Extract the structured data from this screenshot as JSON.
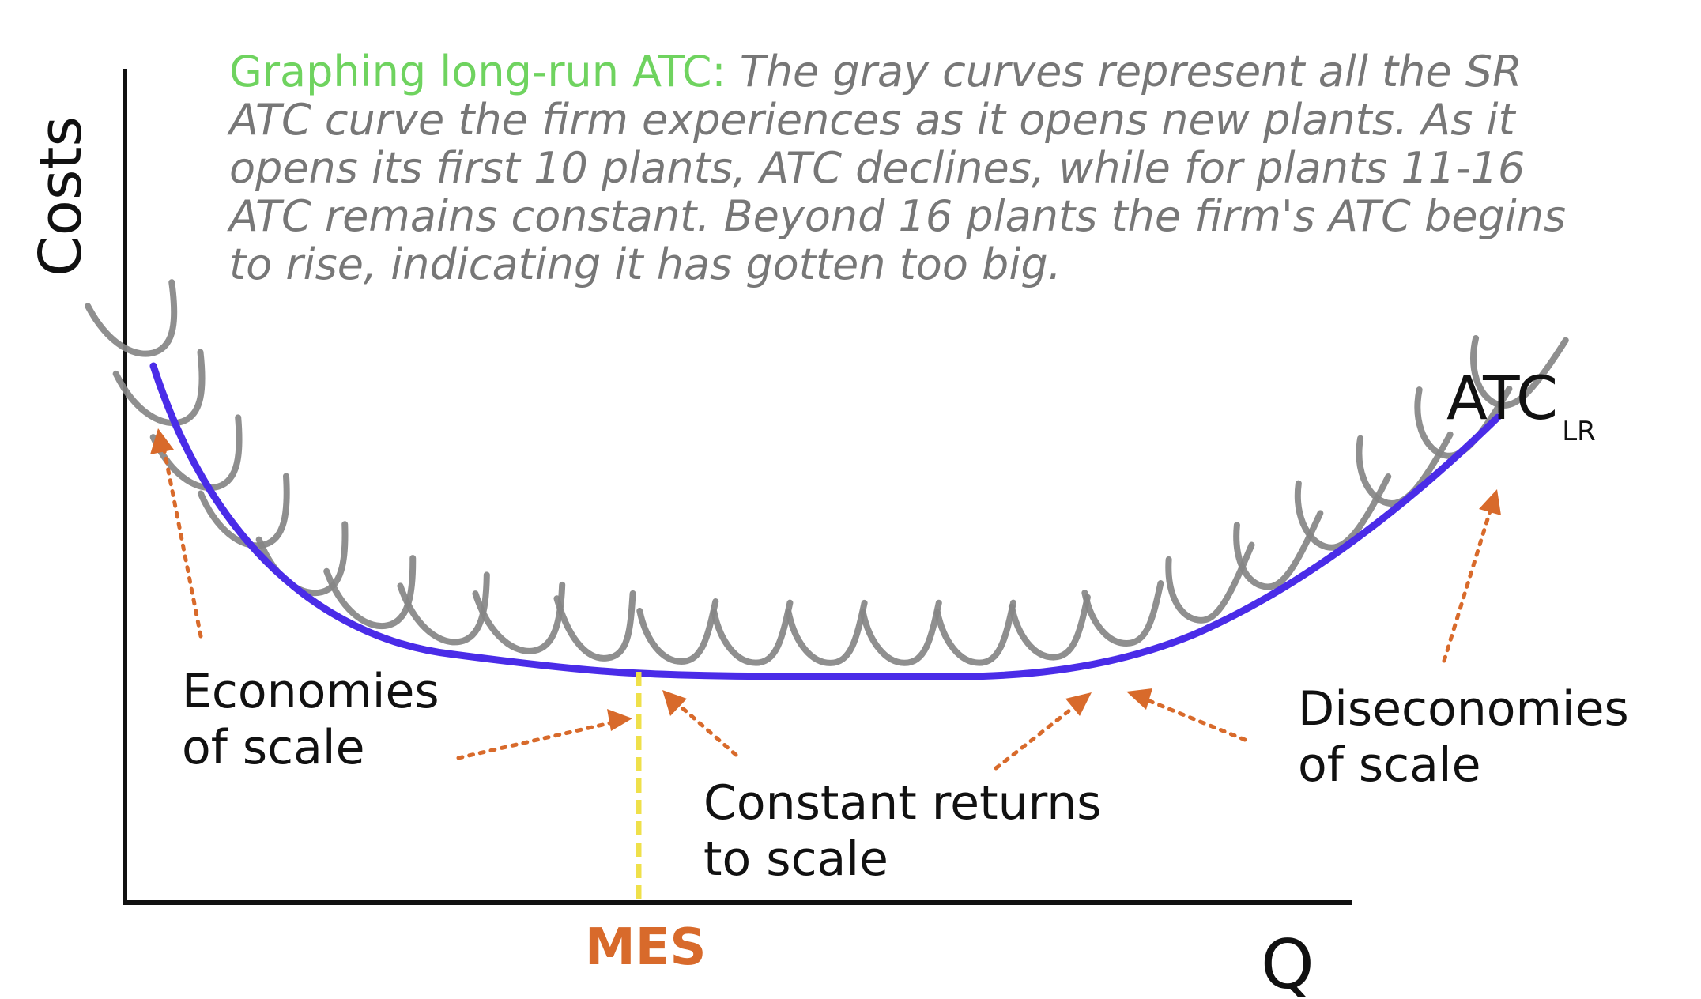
{
  "caption": {
    "title": "Graphing long-run ATC:",
    "body": "The gray curves represent all the SR ATC curve the firm experiences as it opens new plants. As it opens its first 10 plants, ATC declines, while for plants 11-16 ATC remains constant. Beyond 16 plants the firm's ATC begins to rise, indicating it has gotten too big."
  },
  "axes": {
    "y_label": "Costs",
    "x_label": "Q"
  },
  "curve_label": {
    "main": "ATC",
    "subscript": "LR"
  },
  "labels": {
    "economies": [
      "Economies",
      "of scale"
    ],
    "constant": [
      "Constant returns",
      "to scale"
    ],
    "diseconomies": [
      "Diseconomies",
      "of scale"
    ],
    "mes": "MES"
  },
  "colors": {
    "caption_title": "#6fd35f",
    "caption_body": "#777777",
    "lr_curve": "#4a2ce8",
    "sr_curves": "#858585",
    "arrow": "#d86a2b",
    "mes_line": "#efe04a",
    "mes_label": "#d86a2b"
  },
  "diagram": {
    "sr_curve_count": 22,
    "segments": [
      "economies-of-scale",
      "constant-returns-to-scale",
      "diseconomies-of-scale"
    ]
  }
}
